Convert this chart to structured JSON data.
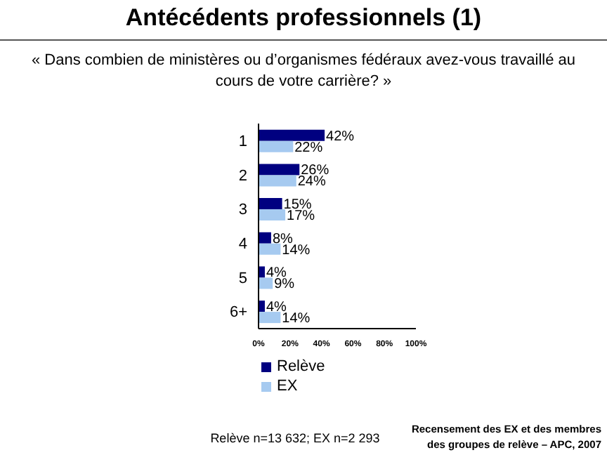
{
  "chart_data": {
    "type": "bar",
    "orientation": "horizontal",
    "title": "Antécédents professionnels (1)",
    "subtitle": "« Dans combien de ministères ou d’organismes fédéraux avez-vous travaillé au cours de votre carrière? »",
    "categories": [
      "1",
      "2",
      "3",
      "4",
      "5",
      "6+"
    ],
    "series": [
      {
        "name": "Relève",
        "color": "#000080",
        "values": [
          42,
          26,
          15,
          8,
          4,
          4
        ],
        "value_labels": [
          "42%",
          "26%",
          "15%",
          "8%",
          "4%",
          "4%"
        ]
      },
      {
        "name": "EX",
        "color": "#a6caf0",
        "values": [
          22,
          24,
          17,
          14,
          9,
          14
        ],
        "value_labels": [
          "22%",
          "24%",
          "17%",
          "14%",
          "9%",
          "14%"
        ]
      }
    ],
    "xlim": [
      0,
      100
    ],
    "xticks": [
      {
        "value": 0,
        "label": "0%"
      },
      {
        "value": 20,
        "label": "20%"
      },
      {
        "value": 40,
        "label": "40%"
      },
      {
        "value": 60,
        "label": "60%"
      },
      {
        "value": 80,
        "label": "80%"
      },
      {
        "value": 100,
        "label": "100%"
      }
    ],
    "legend": "bottom",
    "annotations": [
      "Relève n=13 632; EX n=2 293",
      "Recensement des EX et des membres des groupes de relève – APC, 2007"
    ]
  }
}
